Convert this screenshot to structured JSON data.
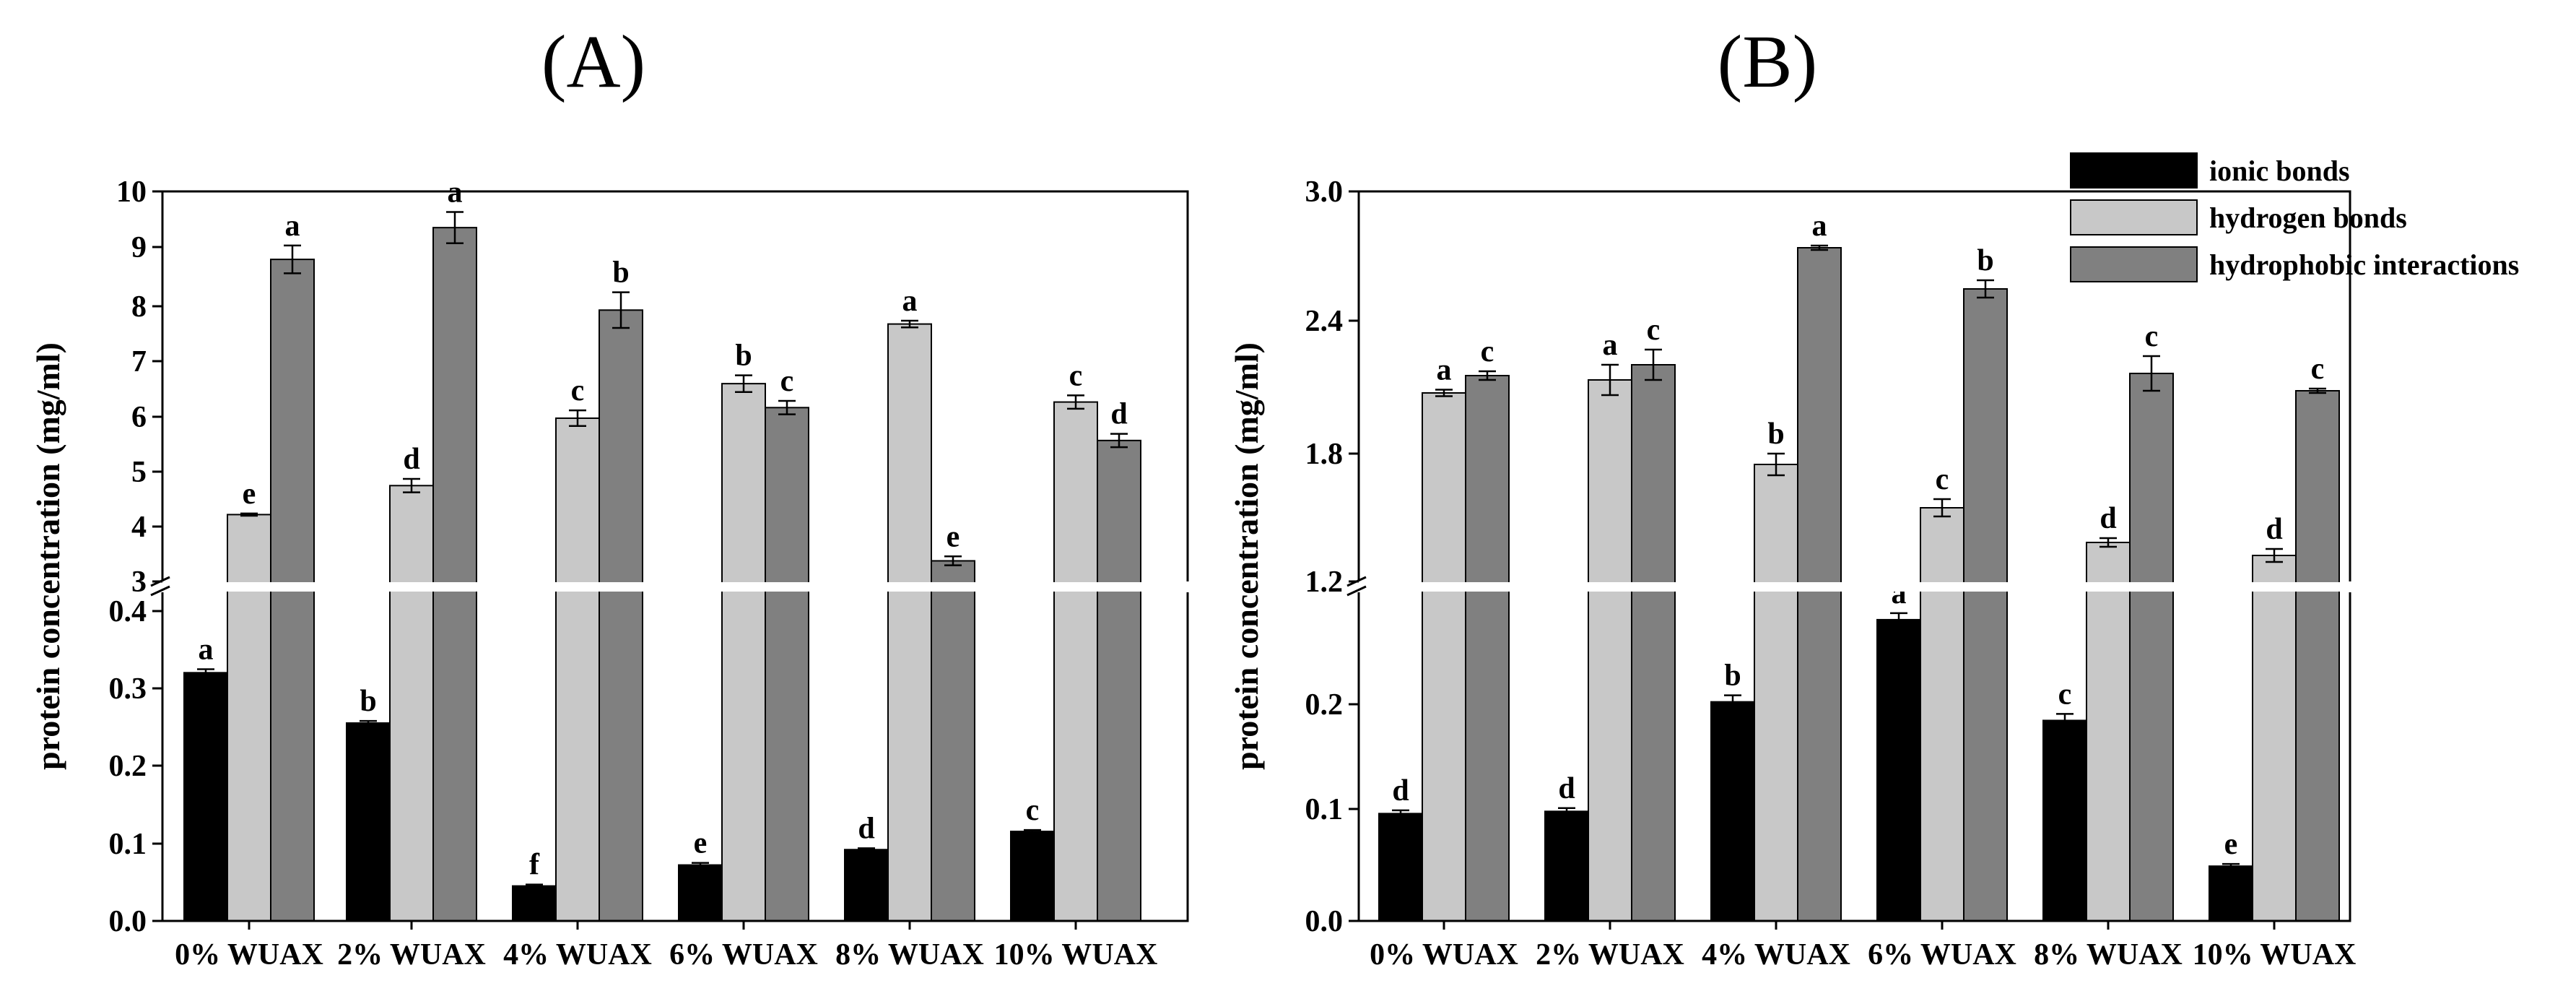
{
  "chart_data": [
    {
      "type": "bar",
      "title": "(A)",
      "xlabel": "",
      "ylabel": "protein concentration (mg/ml)",
      "categories": [
        "0% WUAX",
        "2% WUAX",
        "4% WUAX",
        "6% WUAX",
        "8% WUAX",
        "10% WUAX"
      ],
      "axis_break": {
        "lower": {
          "ylim": [
            0.0,
            0.47
          ],
          "ticks": [
            "0.0",
            "0.1",
            "0.2",
            "0.3",
            "0.4"
          ]
        },
        "upper": {
          "ylim": [
            3,
            10
          ],
          "ticks": [
            "3",
            "4",
            "5",
            "6",
            "7",
            "8",
            "9",
            "10"
          ]
        }
      },
      "series": [
        {
          "name": "ionic bonds",
          "values": [
            0.355,
            0.283,
            0.05,
            0.08,
            0.102,
            0.128
          ],
          "errors": [
            0.005,
            0.003,
            0.002,
            0.003,
            0.002,
            0.002
          ],
          "labels": [
            "a",
            "b",
            "f",
            "e",
            "d",
            "c"
          ]
        },
        {
          "name": "hydrogen bonds",
          "values": [
            4.2,
            4.72,
            5.93,
            6.55,
            7.62,
            6.22
          ],
          "errors": [
            0.02,
            0.12,
            0.14,
            0.15,
            0.06,
            0.12
          ],
          "labels": [
            "e",
            "d",
            "c",
            "b",
            "a",
            "c"
          ]
        },
        {
          "name": "hydrophobic interactions",
          "values": [
            8.78,
            9.35,
            7.87,
            6.12,
            3.37,
            5.53
          ],
          "errors": [
            0.25,
            0.28,
            0.32,
            0.12,
            0.08,
            0.12
          ],
          "labels": [
            "a",
            "a",
            "b",
            "c",
            "e",
            "d"
          ]
        }
      ]
    },
    {
      "type": "bar",
      "title": "(B)",
      "xlabel": "",
      "ylabel": "protein concentration (mg/ml)",
      "categories": [
        "0% WUAX",
        "2% WUAX",
        "4% WUAX",
        "6% WUAX",
        "8% WUAX",
        "10% WUAX"
      ],
      "legend": "top-right",
      "axis_break": {
        "lower": {
          "ylim": [
            0.0,
            0.3
          ],
          "ticks": [
            "0.0",
            "0.1",
            "0.2"
          ]
        },
        "upper": {
          "ylim": [
            1.2,
            3.0
          ],
          "ticks": [
            "1.2",
            "1.8",
            "2.4",
            "3.0"
          ]
        }
      },
      "series": [
        {
          "name": "ionic bonds",
          "values": [
            0.098,
            0.1,
            0.2,
            0.275,
            0.183,
            0.05
          ],
          "errors": [
            0.003,
            0.003,
            0.006,
            0.006,
            0.006,
            0.002
          ],
          "labels": [
            "d",
            "d",
            "b",
            "a",
            "c",
            "e"
          ]
        },
        {
          "name": "hydrogen bonds",
          "values": [
            2.07,
            2.13,
            1.74,
            1.54,
            1.38,
            1.32
          ],
          "errors": [
            0.015,
            0.07,
            0.05,
            0.04,
            0.02,
            0.03
          ],
          "labels": [
            "a",
            "a",
            "b",
            "c",
            "d",
            "d"
          ]
        },
        {
          "name": "hydrophobic interactions",
          "values": [
            2.15,
            2.2,
            2.74,
            2.55,
            2.16,
            2.08
          ],
          "errors": [
            0.02,
            0.07,
            0.01,
            0.04,
            0.08,
            0.01
          ],
          "labels": [
            "c",
            "c",
            "a",
            "b",
            "c",
            "c"
          ]
        }
      ]
    }
  ],
  "colors": {
    "ionic bonds": "#000000",
    "hydrogen bonds": "#c8c8c8",
    "hydrophobic interactions": "#808080"
  }
}
